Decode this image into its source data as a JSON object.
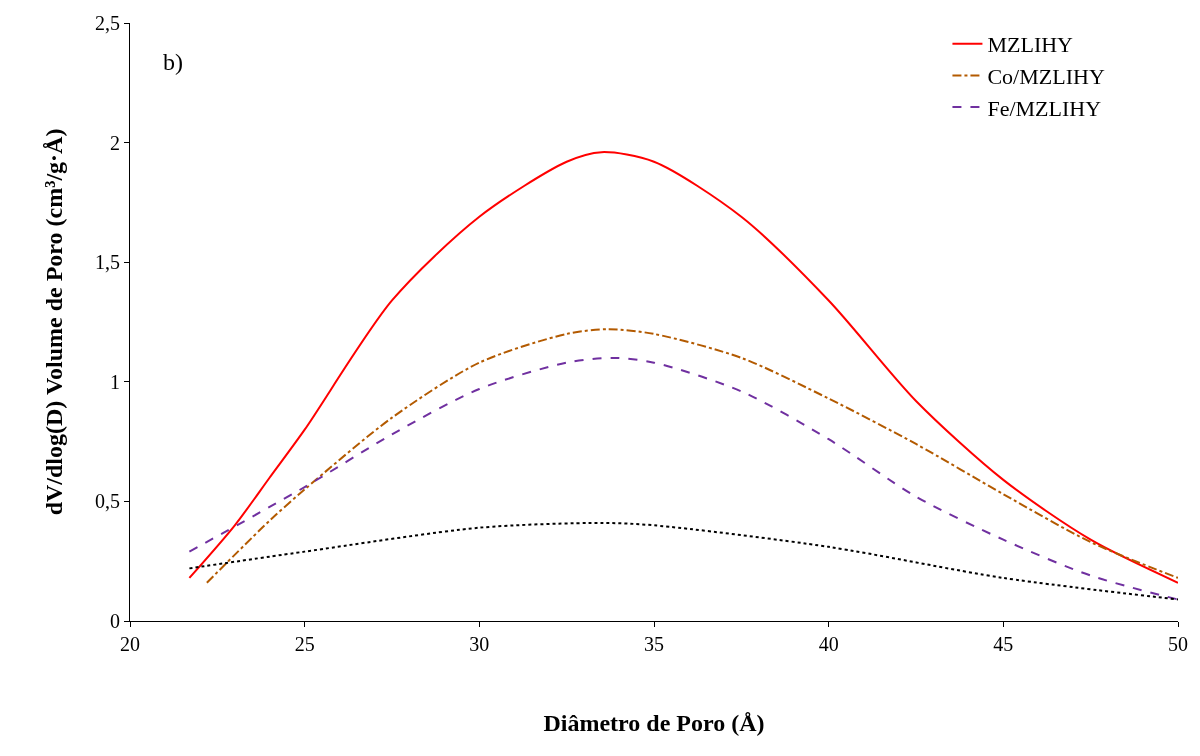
{
  "chart_data": {
    "type": "line",
    "xlabel": "Diâmetro de Poro (Å)",
    "ylabel": "dV/dlog(D) Volume de Poro (cm³/g·Å)",
    "annotations": [
      "b)"
    ],
    "xlim": [
      20,
      50
    ],
    "xticks": [
      20,
      25,
      30,
      35,
      40,
      45,
      50
    ],
    "ylim": [
      0,
      2.5
    ],
    "yticks": [
      0,
      {
        "value": 0.5,
        "label": "0,5"
      },
      1,
      {
        "value": 1.5,
        "label": "1,5"
      },
      2,
      {
        "value": 2.5,
        "label": "2,5"
      }
    ],
    "legend": "top right",
    "marker": "none",
    "series": [
      {
        "name": "MZLIHY",
        "color": "#ff0000",
        "line_style": "solid",
        "x": [
          21.7,
          23,
          24,
          25,
          27.5,
          30,
          32.5,
          33.5,
          35,
          37.5,
          40,
          42.5,
          45,
          47.5,
          50
        ],
        "values": [
          0.18,
          0.4,
          0.6,
          0.8,
          1.34,
          1.69,
          1.92,
          1.96,
          1.92,
          1.69,
          1.34,
          0.92,
          0.59,
          0.34,
          0.16
        ]
      },
      {
        "name": "Co/MZLIHY",
        "color": "#b35a00",
        "line_style": "dashdot",
        "x": [
          22.2,
          24,
          25,
          27.5,
          30,
          32.5,
          33.7,
          35,
          37.5,
          40,
          42.5,
          45,
          47.5,
          50
        ],
        "values": [
          0.16,
          0.42,
          0.55,
          0.85,
          1.08,
          1.2,
          1.22,
          1.2,
          1.1,
          0.93,
          0.74,
          0.53,
          0.33,
          0.18
        ]
      },
      {
        "name": "Fe/MZLIHY",
        "color": "#7030a0",
        "line_style": "dashed",
        "x": [
          21.7,
          25,
          27.5,
          30,
          32.5,
          33.8,
          35,
          37.5,
          40,
          42.5,
          45,
          47.5,
          50
        ],
        "values": [
          0.29,
          0.56,
          0.78,
          0.97,
          1.08,
          1.1,
          1.08,
          0.96,
          0.76,
          0.52,
          0.34,
          0.19,
          0.09
        ]
      },
      {
        "color": "#000000",
        "line_style": "dotted",
        "x": [
          21.7,
          25,
          30,
          33.5,
          35,
          40,
          45,
          50
        ],
        "values": [
          0.22,
          0.29,
          0.39,
          0.41,
          0.4,
          0.31,
          0.18,
          0.09
        ]
      }
    ]
  }
}
